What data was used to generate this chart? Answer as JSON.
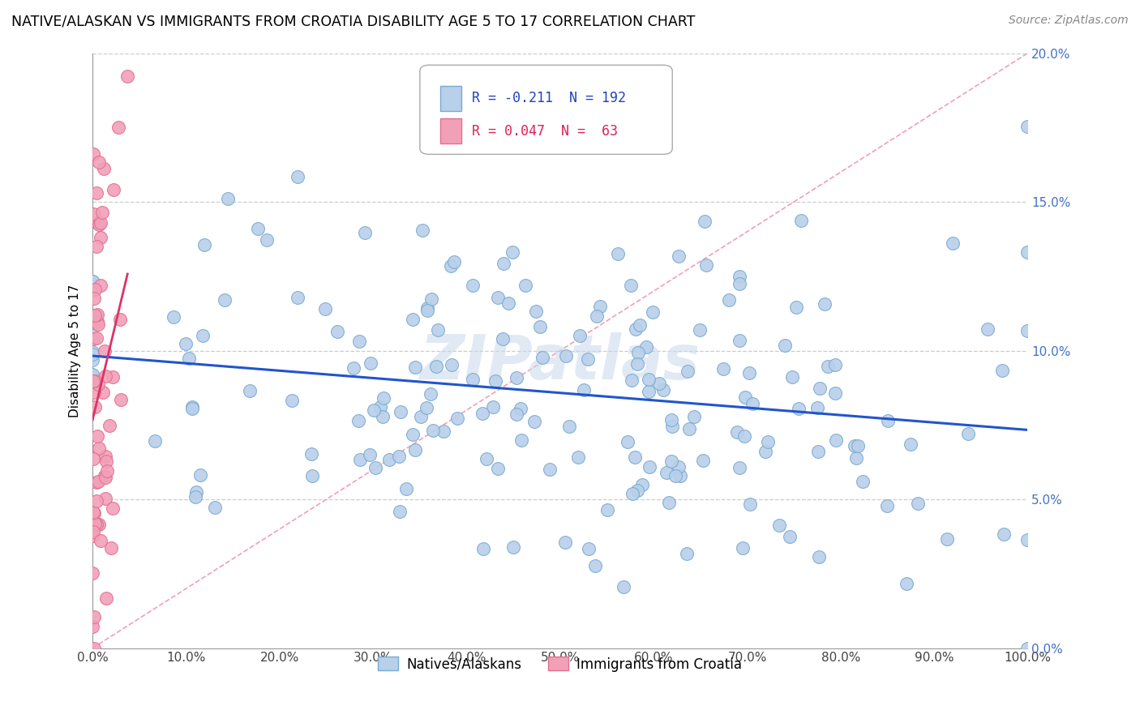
{
  "title": "NATIVE/ALASKAN VS IMMIGRANTS FROM CROATIA DISABILITY AGE 5 TO 17 CORRELATION CHART",
  "source": "Source: ZipAtlas.com",
  "ylabel": "Disability Age 5 to 17",
  "xlim": [
    0,
    100
  ],
  "ylim": [
    0,
    20
  ],
  "xticks": [
    0,
    10,
    20,
    30,
    40,
    50,
    60,
    70,
    80,
    90,
    100
  ],
  "yticks": [
    0,
    5,
    10,
    15,
    20
  ],
  "blue_R": -0.211,
  "blue_N": 192,
  "pink_R": 0.047,
  "pink_N": 63,
  "blue_color": "#b8d0ea",
  "blue_edge": "#7aaacf",
  "pink_color": "#f2a0b8",
  "pink_edge": "#e07090",
  "blue_line_color": "#2255cc",
  "pink_line_color": "#dd3366",
  "diag_line_color": "#f0a0b8",
  "watermark": "ZIPatlas",
  "legend_blue": "Natives/Alaskans",
  "legend_pink": "Immigrants from Croatia",
  "blue_seed": 42,
  "pink_seed": 99,
  "blue_x_mean": 50,
  "blue_x_std": 28,
  "blue_y_mean": 8.5,
  "blue_y_std": 3.2,
  "pink_x_scale": 0.8,
  "pink_y_mean": 8.0,
  "pink_y_std": 4.5
}
